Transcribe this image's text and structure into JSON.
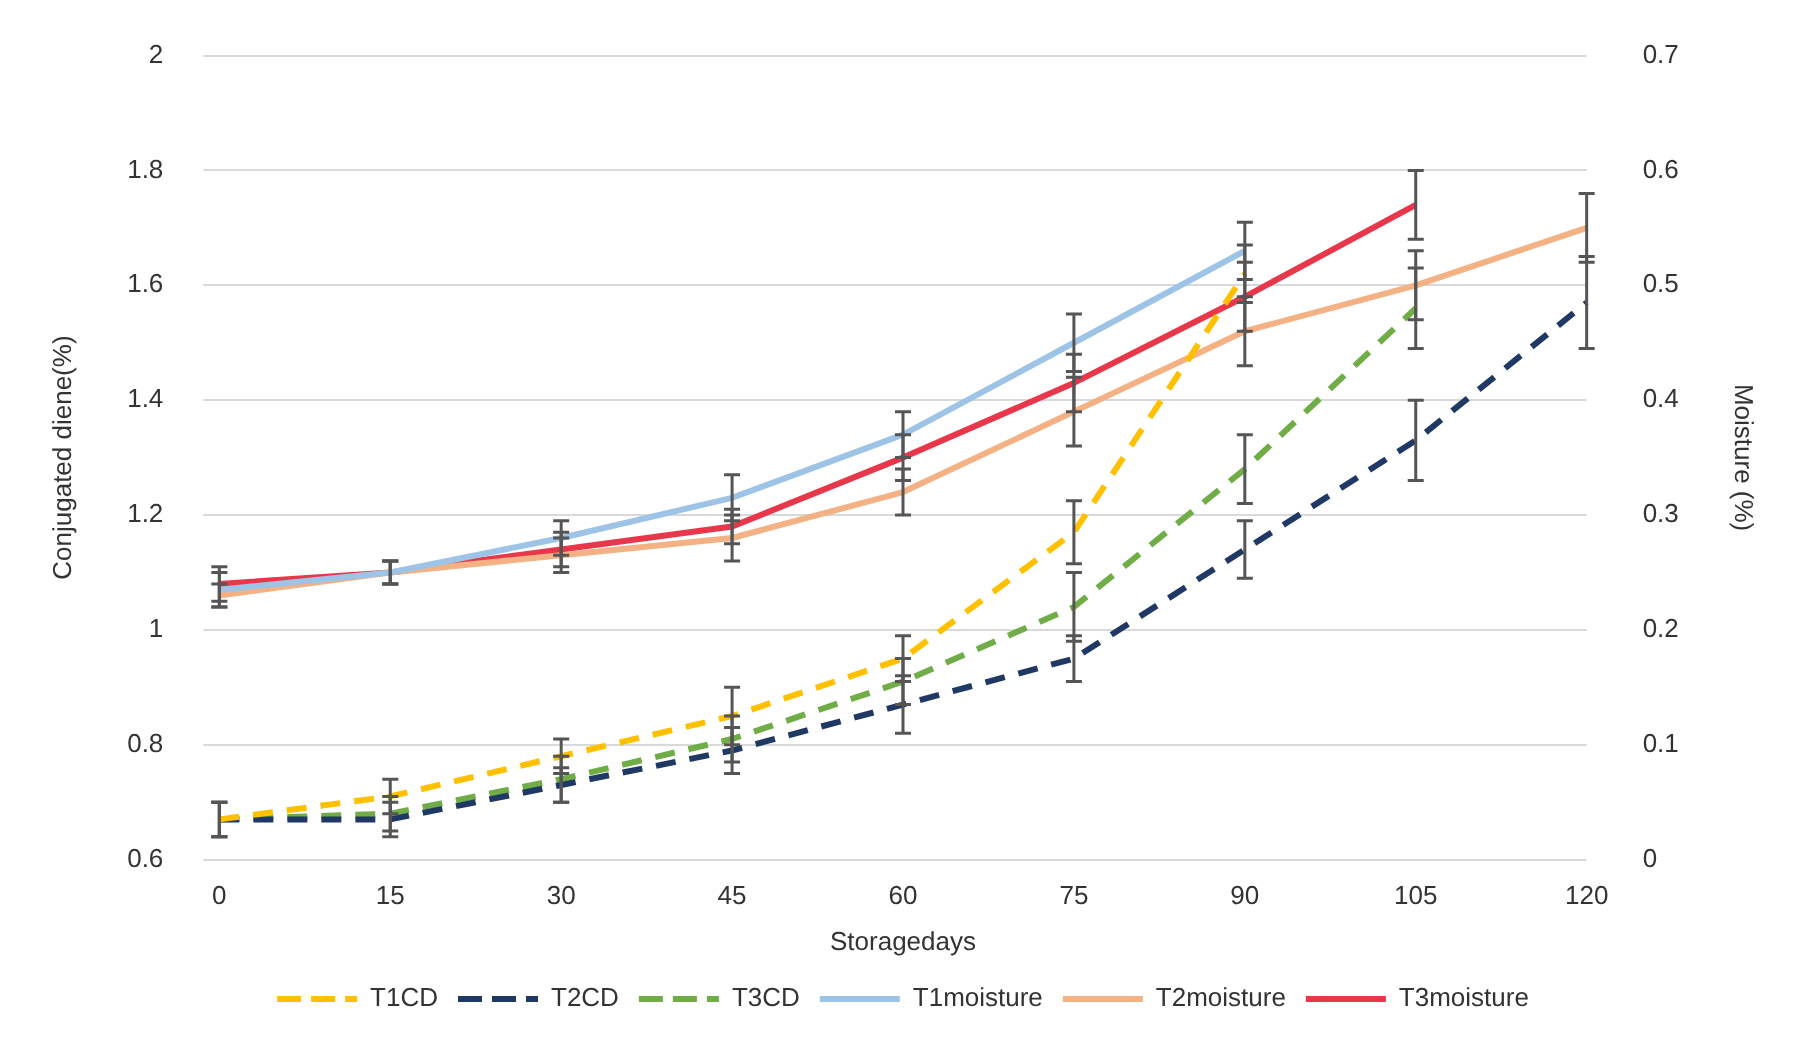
{
  "chart_data": {
    "type": "line",
    "xlabel": "Storagedays",
    "ylabel": "Conjugated diene(%)",
    "y2label": "Moisture (%)",
    "categories": [
      "0",
      "15",
      "30",
      "45",
      "60",
      "75",
      "90",
      "105",
      "120"
    ],
    "series": [
      {
        "name": "T1CD",
        "color": "#ffc000",
        "line_style": "dashed",
        "values": [
          0.67,
          0.71,
          0.78,
          0.85,
          0.95,
          1.17,
          1.62,
          null,
          null
        ],
        "errors": [
          0.03,
          0.03,
          0.03,
          0.05,
          0.04,
          0.055,
          0.05,
          null,
          null
        ]
      },
      {
        "name": "T2CD",
        "color": "#1f3864",
        "line_style": "dashed",
        "values": [
          0.67,
          0.67,
          0.73,
          0.79,
          0.87,
          0.95,
          1.14,
          1.33,
          1.57
        ],
        "errors": [
          0.03,
          0.03,
          0.03,
          0.04,
          0.05,
          0.04,
          0.05,
          0.07,
          0.08
        ]
      },
      {
        "name": "T3CD",
        "color": "#70ad47",
        "line_style": "dashed",
        "values": [
          0.67,
          0.68,
          0.74,
          0.81,
          0.91,
          1.04,
          1.28,
          1.56,
          null
        ],
        "errors": [
          0.03,
          0.03,
          0.04,
          0.04,
          0.04,
          0.06,
          0.06,
          0.07,
          null
        ]
      },
      {
        "name": "T1moisture",
        "color": "#9dc3e6",
        "axis": "y2",
        "line_style": "solid",
        "values": [
          0.235,
          0.25,
          0.28,
          0.315,
          0.37,
          0.45,
          0.53,
          null,
          null
        ],
        "errors": [
          0.015,
          0.01,
          0.015,
          0.02,
          0.02,
          0.025,
          0.025,
          null,
          null
        ]
      },
      {
        "name": "T2moisture",
        "color": "#f4b183",
        "axis": "y2",
        "line_style": "solid",
        "values": [
          0.23,
          0.25,
          0.265,
          0.28,
          0.32,
          0.39,
          0.46,
          0.5,
          0.55
        ],
        "errors": [
          0.01,
          0.01,
          0.015,
          0.02,
          0.02,
          0.03,
          0.03,
          0.03,
          0.03
        ]
      },
      {
        "name": "T3moisture",
        "color": "#e8374a",
        "axis": "y2",
        "line_style": "solid",
        "values": [
          0.24,
          0.25,
          0.27,
          0.29,
          0.35,
          0.415,
          0.49,
          0.57,
          null
        ],
        "errors": [
          0.015,
          0.01,
          0.015,
          0.015,
          0.02,
          0.025,
          0.03,
          0.03,
          null
        ]
      }
    ],
    "ylim": [
      0.6,
      2
    ],
    "yticks": [
      0.6,
      0.8,
      1,
      1.2,
      1.4,
      1.6,
      1.8,
      2
    ],
    "y2lim": [
      0,
      0.7
    ],
    "y2ticks": [
      0,
      0.1,
      0.2,
      0.3,
      0.4,
      0.5,
      0.6,
      0.7
    ],
    "grid": "y",
    "legend": "bottom",
    "marker": "none"
  }
}
